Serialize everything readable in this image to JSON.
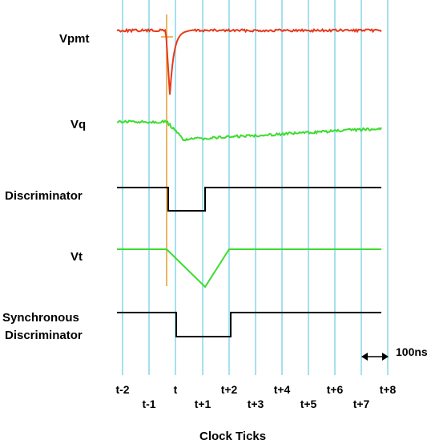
{
  "signals": {
    "vpmt": "Vpmt",
    "vq": "Vq",
    "discriminator": "Discriminator",
    "vt": "Vt",
    "sync_line1": "Synchronous",
    "sync_line2": "Discriminator"
  },
  "scale_label": "100ns",
  "axis_label": "Clock Ticks",
  "ticks": [
    "t-2",
    "t-1",
    "t",
    "t+1",
    "t+2",
    "t+3",
    "t+4",
    "t+5",
    "t+6",
    "t+7",
    "t+8"
  ],
  "colors": {
    "grid": "#7fd3e6",
    "vpmt": "#e8391c",
    "vq": "#3cdc2e",
    "vt": "#3cdc2e",
    "logic": "#000000",
    "marker": "#e8a33c"
  }
}
